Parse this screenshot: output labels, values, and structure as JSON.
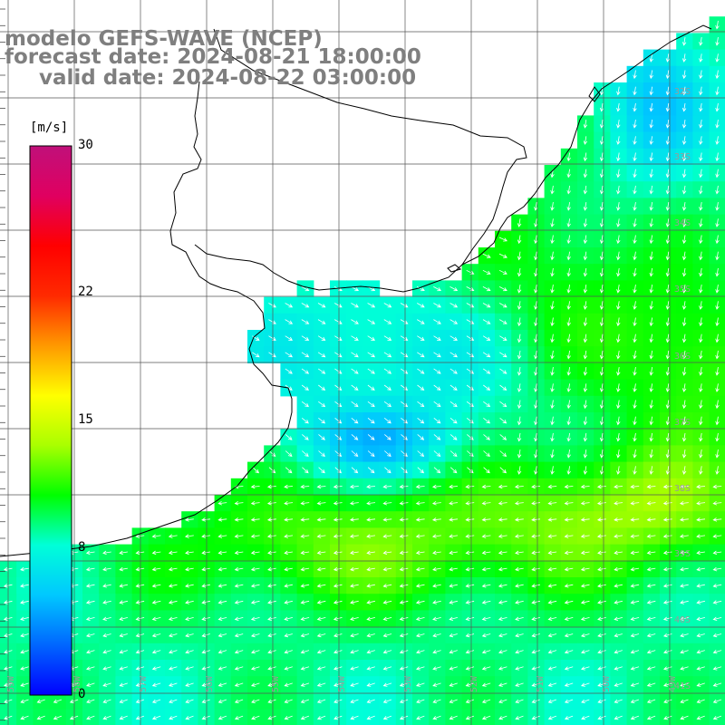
{
  "title": {
    "line1": "modelo GEFS-WAVE (NCEP)",
    "line2": "forecast date: 2024-08-21 18:00:00",
    "line3": "valid date: 2024-08-22 03:00:00"
  },
  "colorbar": {
    "unit": "[m/s]",
    "min": 0,
    "max": 30,
    "ticks": [
      {
        "value": 30,
        "label": "30"
      },
      {
        "value": 22,
        "label": "22"
      },
      {
        "value": 15,
        "label": "15"
      },
      {
        "value": 8,
        "label": "8"
      },
      {
        "value": 0,
        "label": "0"
      }
    ],
    "stops": [
      "#0000ff",
      "#0066ff",
      "#00c8ff",
      "#00ffd8",
      "#00ff00",
      "#aaff00",
      "#ffff00",
      "#ff9900",
      "#ff2a00",
      "#ff0000",
      "#e00060",
      "#c0107a"
    ]
  },
  "grid": {
    "lon_labels": [
      "59W",
      "58W",
      "57W",
      "56W",
      "55W",
      "54W",
      "53W",
      "52W",
      "51W",
      "50W",
      "49W"
    ],
    "lat_labels": [
      "32S",
      "33S",
      "34S",
      "35S",
      "36S",
      "37S",
      "38S",
      "39S",
      "40S",
      "41S"
    ]
  },
  "colors": {
    "land": "#ffffff",
    "coastline": "#000000",
    "gridline": "#555555",
    "vector": "#ffffff"
  }
}
